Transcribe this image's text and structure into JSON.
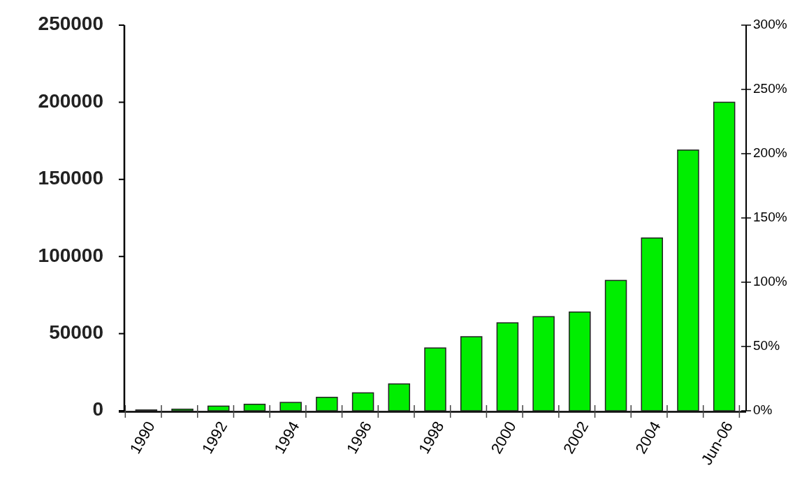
{
  "chart_data": {
    "type": "bar",
    "categories": [
      "1990",
      null,
      "1992",
      null,
      "1994",
      null,
      "1996",
      null,
      "1998",
      null,
      "2000",
      null,
      "2002",
      null,
      "2004",
      null,
      "Jun-06"
    ],
    "values": [
      500,
      1000,
      3000,
      4200,
      5400,
      8700,
      11600,
      17400,
      40700,
      48000,
      57000,
      61000,
      64000,
      84500,
      112000,
      169000,
      200000
    ],
    "color": "#00ee00",
    "ylim": [
      0,
      250000
    ],
    "yticks": [
      0,
      50000,
      100000,
      150000,
      200000,
      250000
    ],
    "y2lim": [
      0,
      3
    ],
    "y2ticks": [
      {
        "value": 0,
        "label": "0%"
      },
      {
        "value": 0.5,
        "label": "50%"
      },
      {
        "value": 1,
        "label": "100%"
      },
      {
        "value": 1.5,
        "label": "150%"
      },
      {
        "value": 2,
        "label": "200%"
      },
      {
        "value": 2.5,
        "label": "250%"
      },
      {
        "value": 3,
        "label": "300%"
      }
    ],
    "grid": false
  }
}
